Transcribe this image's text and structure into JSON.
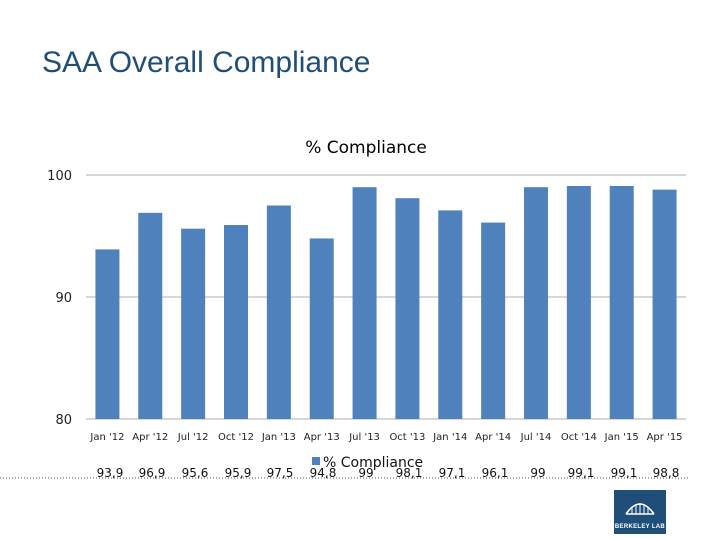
{
  "slide": {
    "title": "SAA Overall Compliance",
    "logo_text": "BERKELEY LAB"
  },
  "colors": {
    "bar": "#4f81bd",
    "title": "#1f4e79",
    "grid": "#bfbfbf",
    "dots": "#555555"
  },
  "chart_data": {
    "type": "bar",
    "title": "% Compliance",
    "xlabel": "",
    "ylabel": "",
    "ylim": [
      80,
      100
    ],
    "yticks": [
      80,
      90,
      100
    ],
    "grid": true,
    "legend_position": "bottom",
    "categories": [
      "Jan '12",
      "Apr '12",
      "Jul '12",
      "Oct '12",
      "Jan '13",
      "Apr '13",
      "Jul '13",
      "Oct '13",
      "Jan '14",
      "Apr '14",
      "Jul '14",
      "Oct '14",
      "Jan '15",
      "Apr '15"
    ],
    "series": [
      {
        "name": "% Compliance",
        "values": [
          93.9,
          96.9,
          95.6,
          95.9,
          97.5,
          94.8,
          99,
          98.1,
          97.1,
          96.1,
          99,
          99.1,
          99.1,
          98.8
        ],
        "labels": [
          "93,9",
          "96,9",
          "95,6",
          "95,9",
          "97,5",
          "94,8",
          "99",
          "98,1",
          "97,1",
          "96,1",
          "99",
          "99,1",
          "99,1",
          "98,8"
        ]
      }
    ]
  }
}
